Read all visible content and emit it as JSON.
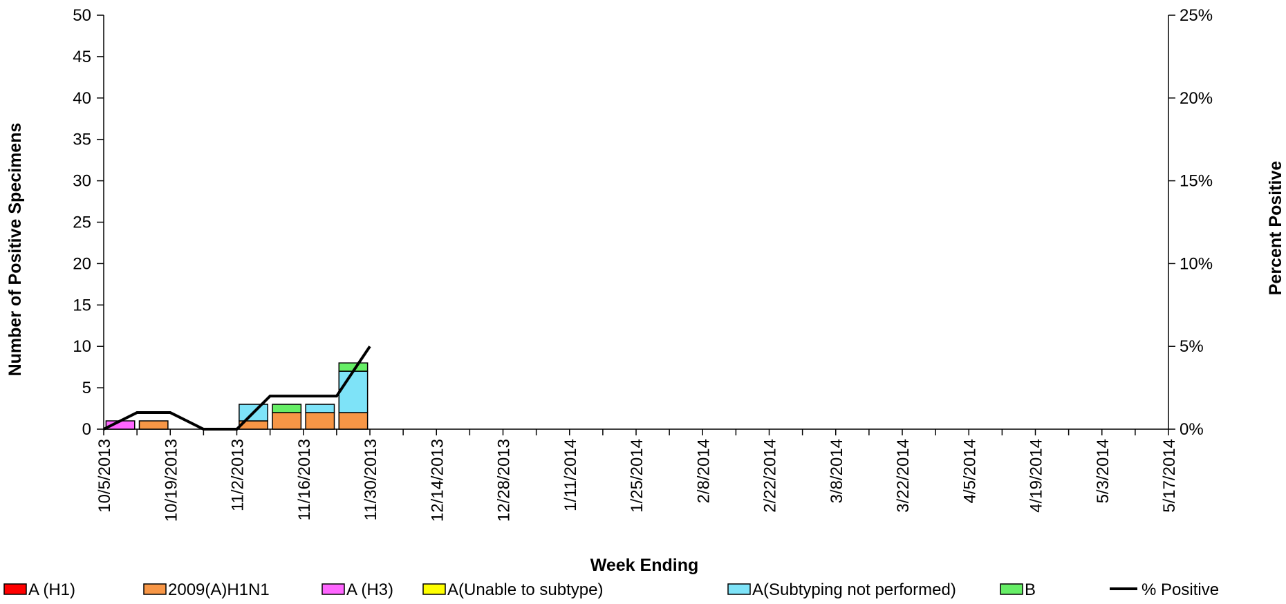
{
  "chart_data": {
    "type": "bar",
    "stacked": true,
    "xlabel": "Week Ending",
    "ylabel_left": "Number of  Positive Specimens",
    "ylabel_right": "Percent Positive",
    "ylim_left": [
      0,
      50
    ],
    "yticks_left": [
      "0",
      "5",
      "10",
      "15",
      "20",
      "25",
      "30",
      "35",
      "40",
      "45",
      "50"
    ],
    "ylim_right": [
      0,
      25
    ],
    "yticks_right": [
      "0%",
      "5%",
      "10%",
      "15%",
      "20%",
      "25%"
    ],
    "x_labels": [
      "10/5/2013",
      "10/19/2013",
      "11/2/2013",
      "11/16/2013",
      "11/30/2013",
      "12/14/2013",
      "12/28/2013",
      "1/11/2014",
      "1/25/2014",
      "2/8/2014",
      "2/22/2014",
      "3/8/2014",
      "3/22/2014",
      "4/5/2014",
      "4/19/2014",
      "5/3/2014",
      "5/17/2014"
    ],
    "weeks": [
      "10/5/2013",
      "10/12/2013",
      "10/19/2013",
      "10/26/2013",
      "11/2/2013",
      "11/9/2013",
      "11/16/2013",
      "11/23/2013",
      "11/30/2013",
      "12/7/2013",
      "12/14/2013",
      "12/21/2013",
      "12/28/2013",
      "1/4/2014",
      "1/11/2014",
      "1/18/2014",
      "1/25/2014",
      "2/1/2014",
      "2/8/2014",
      "2/15/2014",
      "2/22/2014",
      "3/1/2014",
      "3/8/2014",
      "3/15/2014",
      "3/22/2014",
      "3/29/2014",
      "4/5/2014",
      "4/12/2014",
      "4/19/2014",
      "4/26/2014",
      "5/3/2014",
      "5/10/2014",
      "5/17/2014"
    ],
    "series": [
      {
        "name": "A (H1)",
        "color": "#ff0000",
        "values": [
          0,
          0,
          0,
          0,
          0,
          0,
          0,
          0,
          0,
          0,
          0,
          0,
          0,
          0,
          0,
          0,
          0,
          0,
          0,
          0,
          0,
          0,
          0,
          0,
          0,
          0,
          0,
          0,
          0,
          0,
          0,
          0,
          0
        ]
      },
      {
        "name": "2009(A)H1N1",
        "color": "#f79646",
        "values": [
          0,
          0,
          1,
          0,
          0,
          1,
          2,
          2,
          2,
          0,
          0,
          0,
          0,
          0,
          0,
          0,
          0,
          0,
          0,
          0,
          0,
          0,
          0,
          0,
          0,
          0,
          0,
          0,
          0,
          0,
          0,
          0,
          0
        ]
      },
      {
        "name": "A (H3)",
        "color": "#ff66ff",
        "values": [
          0,
          1,
          0,
          0,
          0,
          0,
          0,
          0,
          0,
          0,
          0,
          0,
          0,
          0,
          0,
          0,
          0,
          0,
          0,
          0,
          0,
          0,
          0,
          0,
          0,
          0,
          0,
          0,
          0,
          0,
          0,
          0,
          0
        ]
      },
      {
        "name": "A(Unable to subtype)",
        "color": "#ffff00",
        "values": [
          0,
          0,
          0,
          0,
          0,
          0,
          0,
          0,
          0,
          0,
          0,
          0,
          0,
          0,
          0,
          0,
          0,
          0,
          0,
          0,
          0,
          0,
          0,
          0,
          0,
          0,
          0,
          0,
          0,
          0,
          0,
          0,
          0
        ]
      },
      {
        "name": "A(Subtyping not performed)",
        "color": "#7ee3f8",
        "values": [
          0,
          0,
          0,
          0,
          0,
          2,
          0,
          1,
          5,
          0,
          0,
          0,
          0,
          0,
          0,
          0,
          0,
          0,
          0,
          0,
          0,
          0,
          0,
          0,
          0,
          0,
          0,
          0,
          0,
          0,
          0,
          0,
          0
        ]
      },
      {
        "name": "B",
        "color": "#66ee66",
        "values": [
          0,
          0,
          0,
          0,
          0,
          0,
          1,
          0,
          1,
          0,
          0,
          0,
          0,
          0,
          0,
          0,
          0,
          0,
          0,
          0,
          0,
          0,
          0,
          0,
          0,
          0,
          0,
          0,
          0,
          0,
          0,
          0,
          0
        ]
      }
    ],
    "line_series": {
      "name": "% Positive",
      "color": "#000000",
      "values": [
        0,
        1,
        1,
        0,
        0,
        2,
        2,
        2,
        5
      ]
    },
    "legend_position": "bottom"
  }
}
